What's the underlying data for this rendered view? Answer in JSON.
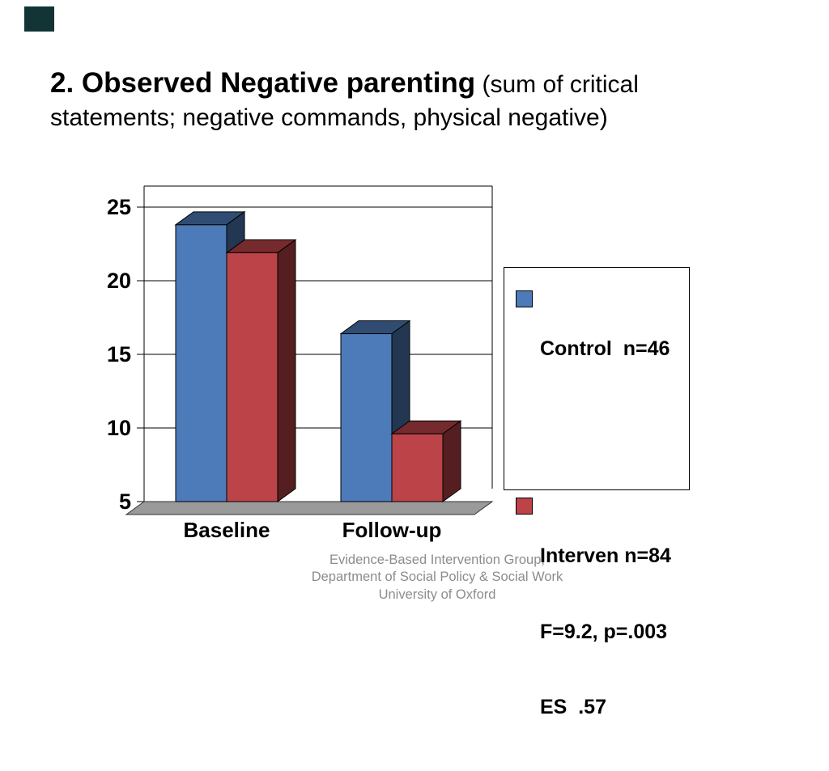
{
  "slide": {
    "corner_color": "#123434",
    "title_bold": "2. Observed Negative parenting",
    "title_tail": "  (sum of critical statements; negative commands, physical negative)"
  },
  "chart_data": {
    "type": "bar",
    "projection": "3d",
    "title": "",
    "categories": [
      "Baseline",
      "Follow-up"
    ],
    "series": [
      {
        "name": "Control n=46",
        "color": "#4d7ab8",
        "values": [
          23.8,
          16.4
        ]
      },
      {
        "name": "Interven n=84",
        "color": "#bc4449",
        "values": [
          21.9,
          9.6
        ]
      }
    ],
    "ylim": [
      5,
      25
    ],
    "yticks": [
      5,
      10,
      15,
      20,
      25
    ],
    "grid": true,
    "legend_position": "right",
    "floor_color": "#9a9a9a"
  },
  "legend": {
    "items": [
      {
        "label": "Control  n=46",
        "color": "#4d7ab8"
      },
      {
        "label": "Interven n=84",
        "color": "#bc4449",
        "extra_lines": [
          "F=9.2, p=.003",
          "ES  .57"
        ]
      }
    ]
  },
  "footer": {
    "lines": [
      "Evidence-Based Intervention Group,",
      "Department of Social Policy & Social Work",
      "University of Oxford"
    ]
  }
}
